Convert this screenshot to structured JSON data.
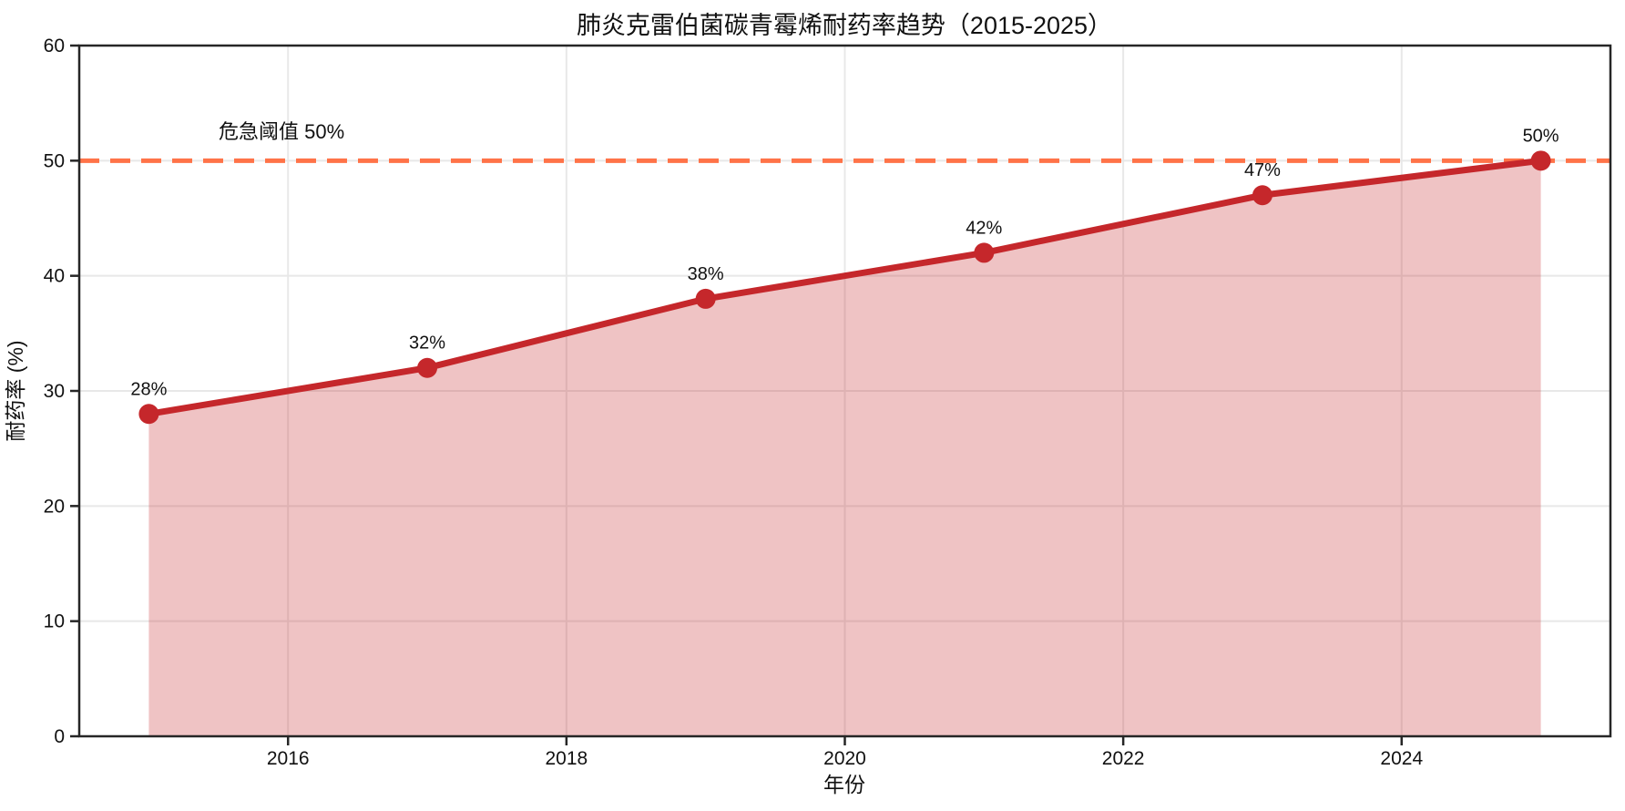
{
  "chart_data": {
    "type": "line",
    "title": "肺炎克雷伯菌碳青霉烯耐药率趋势（2015-2025）",
    "xlabel": "年份",
    "ylabel": "耐药率 (%)",
    "x": [
      2015,
      2017,
      2019,
      2021,
      2023,
      2025
    ],
    "series": [
      {
        "name": "耐药率",
        "values": [
          28,
          32,
          38,
          42,
          47,
          50
        ]
      }
    ],
    "point_labels": [
      "28%",
      "32%",
      "38%",
      "42%",
      "47%",
      "50%"
    ],
    "xticks": {
      "values": [
        2016,
        2018,
        2020,
        2022,
        2024
      ],
      "labels": [
        "2016",
        "2018",
        "2020",
        "2022",
        "2024"
      ]
    },
    "yticks": {
      "values": [
        0,
        10,
        20,
        30,
        40,
        50,
        60
      ],
      "labels": [
        "0",
        "10",
        "20",
        "30",
        "40",
        "50",
        "60"
      ]
    },
    "xlim": [
      2014.5,
      2025.5
    ],
    "ylim": [
      0,
      60
    ],
    "grid": true,
    "area_fill": true,
    "legend_position": "none",
    "threshold": {
      "value": 50,
      "label": "危急阈值 50%"
    },
    "colors": {
      "line": "#c5272b",
      "marker": "#c5272b",
      "fill": "rgba(197,39,43,0.28)",
      "threshold": "#ff7348",
      "grid": "#e8e8e8",
      "axis": "#262626",
      "text": "#111111",
      "background": "#ffffff"
    }
  }
}
